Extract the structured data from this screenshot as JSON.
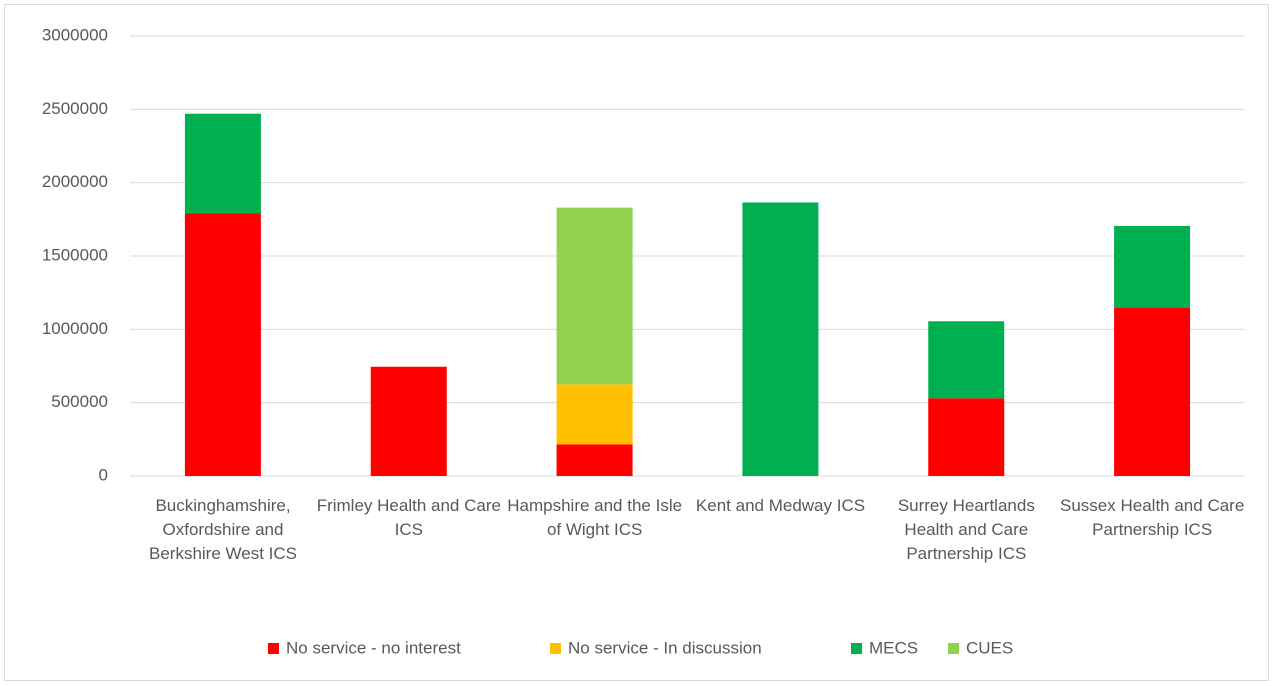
{
  "chart_data": {
    "type": "bar",
    "stacked": true,
    "categories": [
      "Buckinghamshire, Oxfordshire and Berkshire West ICS",
      "Frimley Health and Care ICS",
      "Hampshire and the Isle of Wight ICS",
      "Kent and Medway ICS",
      "Surrey Heartlands Health and Care Partnership ICS",
      "Sussex Health and Care Partnership ICS"
    ],
    "series": [
      {
        "name": "No service - no interest",
        "color": "#ff0000",
        "values": [
          1790000,
          745000,
          215000,
          null,
          530000,
          1150000
        ]
      },
      {
        "name": "No service - In discussion",
        "color": "#ffc000",
        "values": [
          null,
          null,
          410000,
          null,
          null,
          null
        ]
      },
      {
        "name": "MECS",
        "color": "#00b050",
        "values": [
          680000,
          null,
          null,
          1865000,
          525000,
          555000
        ]
      },
      {
        "name": "CUES",
        "color": "#92d050",
        "values": [
          null,
          null,
          1205000,
          null,
          null,
          null
        ]
      }
    ],
    "ylim": [
      0,
      3000000
    ],
    "yticks": [
      0,
      500000,
      1000000,
      1500000,
      2000000,
      2500000,
      3000000
    ],
    "grid": true,
    "legend": "bottom"
  }
}
